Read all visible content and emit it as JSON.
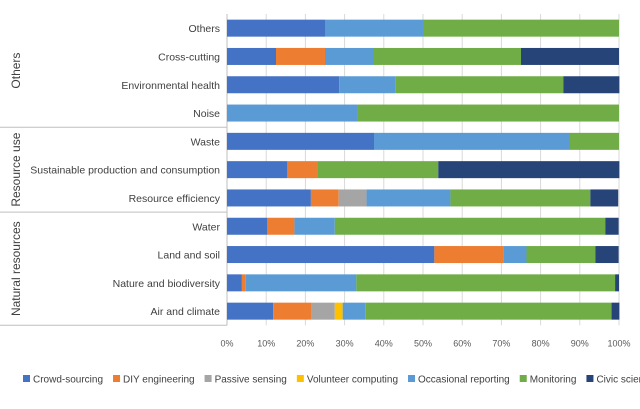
{
  "chart_data": {
    "type": "bar",
    "orientation": "horizontal-stacked-100",
    "xlabel": "",
    "ylabel": "",
    "xlim": [
      0,
      100
    ],
    "x_ticks": [
      "0%",
      "10%",
      "20%",
      "30%",
      "40%",
      "50%",
      "60%",
      "70%",
      "80%",
      "90%",
      "100%"
    ],
    "grid": true,
    "legend_position": "bottom",
    "groups": [
      {
        "label": "Others",
        "categories": [
          "Others",
          "Cross-cutting",
          "Environmental health",
          "Noise"
        ]
      },
      {
        "label": "Resource use",
        "categories": [
          "Waste",
          "Sustainable production and consumption",
          "Resource efficiency"
        ]
      },
      {
        "label": "Natural resources",
        "categories": [
          "Water",
          "Land and soil",
          "Nature and biodiversity",
          "Air and climate"
        ]
      }
    ],
    "categories": [
      "Others",
      "Cross-cutting",
      "Environmental health",
      "Noise",
      "Waste",
      "Sustainable production and consumption",
      "Resource efficiency",
      "Water",
      "Land and soil",
      "Nature and biodiversity",
      "Air and climate"
    ],
    "series": [
      {
        "name": "Crowd-sourcing",
        "color": "#4472C4",
        "values": [
          25,
          12.5,
          28.6,
          0,
          37.5,
          15.4,
          21.4,
          10.3,
          52.9,
          3.8,
          11.8
        ]
      },
      {
        "name": "DIY engineering",
        "color": "#ED7D31",
        "values": [
          0,
          12.5,
          0,
          0,
          0,
          7.7,
          7.1,
          6.9,
          17.6,
          1,
          9.8
        ]
      },
      {
        "name": "Passive sensing",
        "color": "#A5A5A5",
        "values": [
          0,
          0,
          0,
          0,
          0,
          0,
          7.1,
          0,
          0,
          0,
          5.9
        ]
      },
      {
        "name": "Volunteer computing",
        "color": "#FFC000",
        "values": [
          0,
          0,
          0,
          0,
          0,
          0,
          0,
          0,
          0,
          0,
          2
        ]
      },
      {
        "name": "Occasional reporting",
        "color": "#5B9BD5",
        "values": [
          25,
          12.5,
          14.3,
          33.3,
          50,
          0,
          21.4,
          10.3,
          5.9,
          28.2,
          5.9
        ]
      },
      {
        "name": "Monitoring",
        "color": "#70AD47",
        "values": [
          50,
          37.5,
          42.9,
          66.7,
          12.5,
          30.8,
          35.7,
          69,
          17.6,
          66,
          62.7
        ]
      },
      {
        "name": "Civic science",
        "color": "#264478",
        "values": [
          0,
          25,
          14.3,
          0,
          0,
          46.2,
          7.1,
          3.4,
          5.9,
          1,
          2
        ]
      }
    ]
  }
}
